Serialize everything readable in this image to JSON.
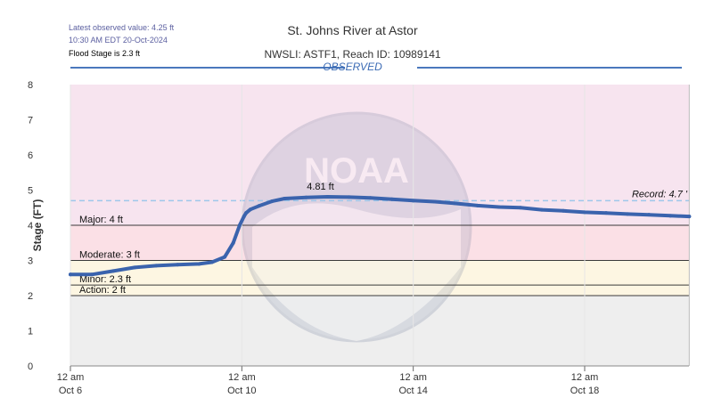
{
  "header": {
    "latest_value": "Latest observed value: 4.25 ft",
    "latest_time": "10:30 AM EDT 20-Oct-2024",
    "flood_stage": "Flood Stage is 2.3 ft",
    "title": "St. Johns River at Astor",
    "subtitle": "NWSLI: ASTF1, Reach ID: 10989141",
    "mode": "OBSERVED"
  },
  "colors": {
    "line": "#3a63ad",
    "major_band": "#f7e4ef",
    "moderate_band": "#fbe0e6",
    "minor_band": "#fdf6e2",
    "action_band": "#eeeeee",
    "record_line": "#9ec7ea"
  },
  "chart_data": {
    "type": "line",
    "ylabel": "Stage (FT)",
    "ylim": [
      0,
      8
    ],
    "yticks": [
      "0",
      "1",
      "2",
      "3",
      "4",
      "5",
      "6",
      "7",
      "8"
    ],
    "x_start": "Oct 6 12 am",
    "x_end": "Oct 20 10:30 AM",
    "xticks": [
      {
        "day": 0,
        "top": "12 am",
        "bottom": "Oct 6"
      },
      {
        "day": 4,
        "top": "12 am",
        "bottom": "Oct 10"
      },
      {
        "day": 8,
        "top": "12 am",
        "bottom": "Oct 14"
      },
      {
        "day": 12,
        "top": "12 am",
        "bottom": "Oct 18"
      }
    ],
    "thresholds": [
      {
        "name": "Major",
        "label": "Major: 4 ft",
        "value": 4
      },
      {
        "name": "Moderate",
        "label": "Moderate: 3 ft",
        "value": 3
      },
      {
        "name": "Minor",
        "label": "Minor: 2.3 ft",
        "value": 2.3
      },
      {
        "name": "Action",
        "label": "Action: 2 ft",
        "value": 2
      }
    ],
    "record": {
      "label": "Record: 4.7 '",
      "value": 4.7
    },
    "peak": {
      "label": "4.81 ft",
      "day": 6.0,
      "value": 4.81
    },
    "series": [
      {
        "x": [
          0,
          0.5,
          1,
          1.5,
          2,
          2.5,
          3,
          3.3,
          3.6,
          3.8,
          3.95,
          4.05,
          4.1,
          4.2,
          4.4,
          4.7,
          5,
          5.5,
          6,
          6.5,
          7,
          7.5,
          8,
          8.5,
          9,
          9.5,
          10,
          10.5,
          11,
          11.5,
          12,
          12.5,
          13,
          13.5,
          14,
          14.44
        ],
        "y": [
          2.6,
          2.6,
          2.7,
          2.8,
          2.85,
          2.88,
          2.9,
          2.95,
          3.1,
          3.5,
          4.0,
          4.25,
          4.35,
          4.45,
          4.55,
          4.68,
          4.76,
          4.79,
          4.81,
          4.8,
          4.78,
          4.74,
          4.7,
          4.67,
          4.62,
          4.56,
          4.52,
          4.5,
          4.44,
          4.41,
          4.37,
          4.35,
          4.32,
          4.3,
          4.27,
          4.25
        ]
      }
    ]
  }
}
